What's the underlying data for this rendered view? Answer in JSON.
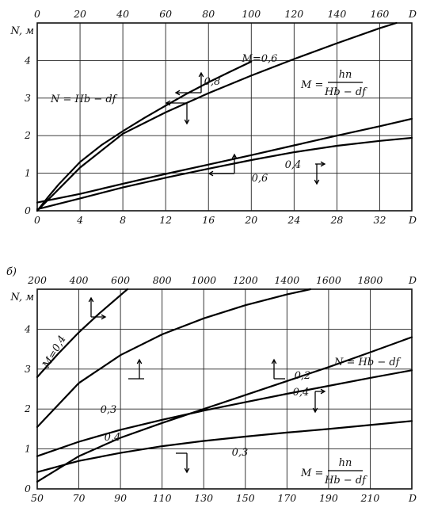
{
  "chart_data": [
    {
      "type": "line",
      "title": "",
      "ylabel": "N, м",
      "top_axis": {
        "label": "D",
        "min": 0,
        "max": 175,
        "ticks": [
          0,
          20,
          40,
          60,
          80,
          100,
          120,
          140,
          160
        ]
      },
      "bottom_axis": {
        "label": "D",
        "min": 0,
        "max": 35,
        "ticks": [
          0,
          4,
          8,
          12,
          16,
          20,
          24,
          28,
          32
        ]
      },
      "y_axis": {
        "min": 0,
        "max": 5,
        "ticks": [
          0,
          1,
          2,
          3,
          4
        ]
      },
      "grid": true,
      "annotations": {
        "n_formula": "N = Hb − df",
        "m_formula_lhs": "M =",
        "m_formula_num": "hп",
        "m_formula_den": "Hb − df"
      },
      "series": [
        {
          "name": "M=0,6",
          "label": "M=0,6",
          "axis": "top",
          "x": [
            0,
            5,
            10,
            20,
            30,
            40,
            50,
            60,
            70,
            80,
            90,
            100
          ],
          "y": [
            0,
            0.36,
            0.7,
            1.3,
            1.75,
            2.12,
            2.47,
            2.8,
            3.12,
            3.42,
            3.7,
            3.97
          ]
        },
        {
          "name": "0,8",
          "label": "0,8",
          "axis": "bottom",
          "x": [
            0,
            4,
            8,
            12,
            16,
            20,
            24,
            28,
            32,
            35
          ],
          "y": [
            0,
            1.15,
            2.05,
            2.62,
            3.13,
            3.6,
            4.04,
            4.46,
            4.86,
            5.13
          ]
        },
        {
          "name": "0,4",
          "label": "0,4",
          "axis": "top",
          "x": [
            0,
            20,
            40,
            60,
            80,
            100,
            120,
            140,
            160,
            175
          ],
          "y": [
            0.22,
            0.45,
            0.72,
            0.98,
            1.23,
            1.48,
            1.74,
            2.0,
            2.25,
            2.45
          ]
        },
        {
          "name": "0,6",
          "label": "0,6",
          "axis": "bottom",
          "x": [
            0,
            4,
            8,
            12,
            16,
            20,
            24,
            28,
            32,
            35
          ],
          "y": [
            0.04,
            0.33,
            0.62,
            0.88,
            1.12,
            1.35,
            1.56,
            1.73,
            1.86,
            1.94
          ]
        }
      ]
    },
    {
      "type": "line",
      "title": "",
      "panel_label": "б)",
      "ylabel": "N, м",
      "top_axis": {
        "label": "D",
        "min": 200,
        "max": 2000,
        "ticks": [
          200,
          400,
          600,
          800,
          1000,
          1200,
          1400,
          1600,
          1800
        ]
      },
      "bottom_axis": {
        "label": "D",
        "min": 50,
        "max": 230,
        "ticks": [
          50,
          70,
          90,
          110,
          130,
          150,
          170,
          190,
          210
        ]
      },
      "y_axis": {
        "min": 0,
        "max": 5,
        "ticks": [
          0,
          1,
          2,
          3,
          4
        ]
      },
      "grid": true,
      "annotations": {
        "n_formula": "N = Hb − df",
        "m_formula_lhs": "M =",
        "m_formula_num": "hп",
        "m_formula_den": "Hb − df"
      },
      "series": [
        {
          "name": "M=0,4",
          "label": "M=0,4",
          "axis": "top",
          "x": [
            200,
            300,
            400,
            500,
            600,
            700
          ],
          "y": [
            2.8,
            3.38,
            3.92,
            4.4,
            4.85,
            5.3
          ]
        },
        {
          "name": "0,3",
          "label": "0,3",
          "axis": "top",
          "x": [
            200,
            400,
            600,
            800,
            1000,
            1200,
            1400,
            1600
          ],
          "y": [
            1.55,
            2.65,
            3.35,
            3.87,
            4.27,
            4.6,
            4.87,
            5.1
          ]
        },
        {
          "name": "0,2",
          "label": "0,2",
          "axis": "bottom",
          "x": [
            50,
            70,
            90,
            110,
            130,
            150,
            170,
            190,
            210,
            230
          ],
          "y": [
            0.18,
            0.82,
            1.28,
            1.65,
            2.0,
            2.35,
            2.7,
            3.05,
            3.42,
            3.8
          ]
        },
        {
          "name": "0,4",
          "label": "0,4",
          "axis": "top",
          "x": [
            200,
            400,
            600,
            800,
            1000,
            1200,
            1400,
            1600,
            1800,
            2000
          ],
          "y": [
            0.82,
            1.18,
            1.48,
            1.73,
            1.96,
            2.17,
            2.38,
            2.58,
            2.78,
            2.97
          ]
        },
        {
          "name": "0,3",
          "label": "0,3",
          "axis": "bottom",
          "x": [
            50,
            70,
            90,
            110,
            130,
            150,
            170,
            190,
            210,
            230
          ],
          "y": [
            0.42,
            0.7,
            0.9,
            1.07,
            1.2,
            1.31,
            1.41,
            1.5,
            1.6,
            1.7
          ]
        }
      ]
    }
  ]
}
